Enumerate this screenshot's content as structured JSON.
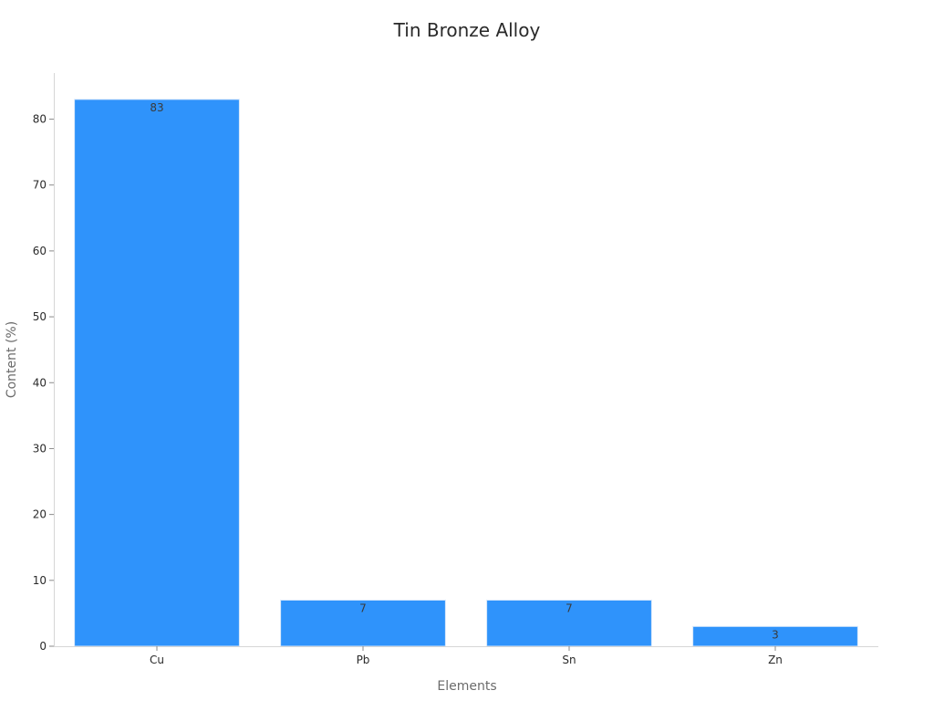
{
  "chart_data": {
    "type": "bar",
    "title": "Tin Bronze Alloy",
    "xlabel": "Elements",
    "ylabel": "Content (%)",
    "categories": [
      "Cu",
      "Pb",
      "Sn",
      "Zn"
    ],
    "values": [
      83,
      7,
      7,
      3
    ],
    "data_labels": [
      "83",
      "7",
      "7",
      "3"
    ],
    "yticks": [
      0,
      10,
      20,
      30,
      40,
      50,
      60,
      70,
      80
    ],
    "ylim": [
      0,
      87
    ],
    "grid": false,
    "legend": "none",
    "colors": {
      "bar": "#2f93fb",
      "bar_edge": "#d8e8fb"
    }
  }
}
